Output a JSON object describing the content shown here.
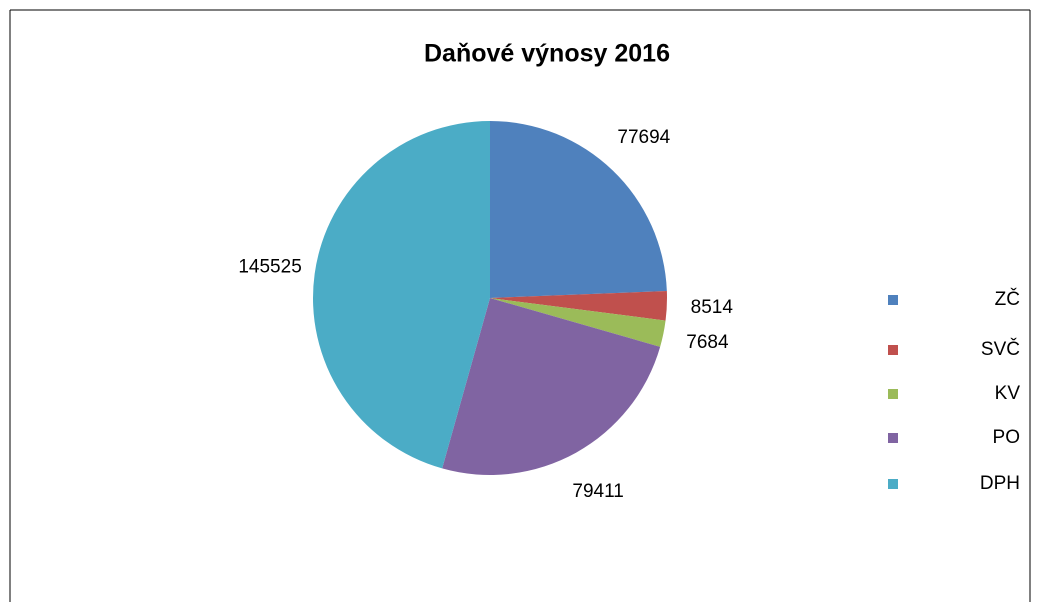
{
  "chart_data": {
    "type": "pie",
    "title": "Daňové výnosy 2016",
    "categories": [
      "ZČ",
      "SVČ",
      "KV",
      "PO",
      "DPH"
    ],
    "values": [
      77694,
      8514,
      7684,
      79411,
      145525
    ],
    "colors": [
      "#4f81bd",
      "#c0504d",
      "#9bbb59",
      "#8064a2",
      "#4bacc6"
    ],
    "legend": "right"
  }
}
